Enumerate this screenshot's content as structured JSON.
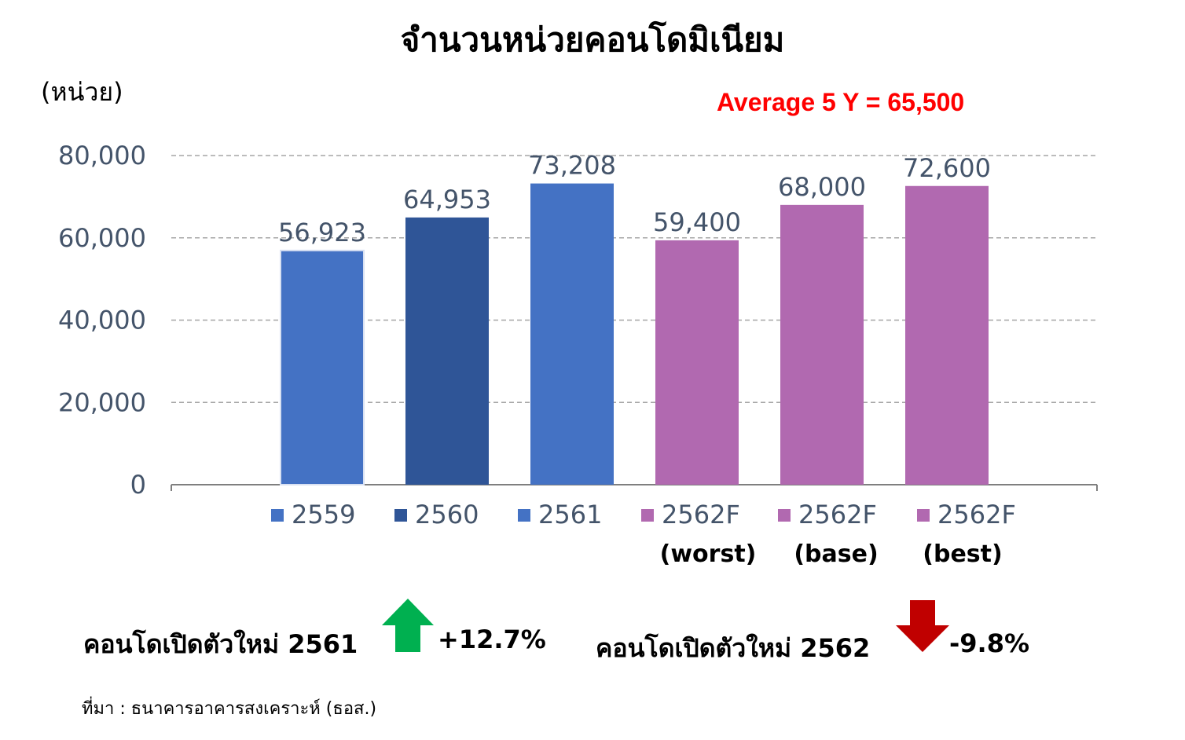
{
  "title": "จำนวนหน่วยคอนโดมิเนียม",
  "unit_label": "(หน่วย)",
  "average_label": "Average 5 Y = 65,500",
  "chart_data": {
    "type": "bar",
    "title": "จำนวนหน่วยคอนโดมิเนียม",
    "ylabel": "(หน่วย)",
    "ylim": [
      0,
      80000
    ],
    "yticks": [
      "0",
      "20,000",
      "40,000",
      "60,000",
      "80,000"
    ],
    "grid": true,
    "legend_position": "bottom",
    "categories": [
      "2559",
      "2560",
      "2561",
      "2562F",
      "2562F",
      "2562F"
    ],
    "category_sublabels": [
      "",
      "",
      "",
      "(worst)",
      "(base)",
      "(best)"
    ],
    "values": [
      56923,
      64953,
      73208,
      59400,
      68000,
      72600
    ],
    "value_labels": [
      "56,923",
      "64,953",
      "73,208",
      "59,400",
      "68,000",
      "72,600"
    ],
    "colors": [
      "#4472c4",
      "#2f5597",
      "#4472c4",
      "#b169b0",
      "#b169b0",
      "#b169b0"
    ]
  },
  "notes": [
    {
      "label": "คอนโดเปิดตัวใหม่ 2561",
      "change": "+12.7%",
      "direction": "up",
      "color": "#00b050"
    },
    {
      "label": "คอนโดเปิดตัวใหม่ 2562",
      "change": "-9.8%",
      "direction": "down",
      "color": "#c00000"
    }
  ],
  "source": "ที่มา :  ธนาคารอาคารสงเคราะห์ (ธอส.)"
}
